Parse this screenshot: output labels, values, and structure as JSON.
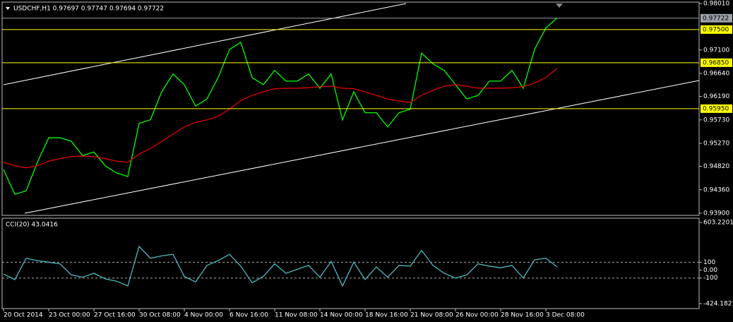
{
  "chart_data": [
    {
      "type": "line",
      "title": "USDCHF,H1  0.97697 0.97747 0.97694 0.97722",
      "ylim": [
        0.939,
        0.9801
      ],
      "yticks": [
        {
          "value": 0.9801,
          "label": "0.98010"
        },
        {
          "value": 0.971,
          "label": "0.97100"
        },
        {
          "value": 0.9664,
          "label": "0.96640"
        },
        {
          "value": 0.9619,
          "label": "0.96190"
        },
        {
          "value": 0.9573,
          "label": "0.95730"
        },
        {
          "value": 0.9527,
          "label": "0.95270"
        },
        {
          "value": 0.9482,
          "label": "0.94820"
        },
        {
          "value": 0.9436,
          "label": "0.94360"
        },
        {
          "value": 0.939,
          "label": "0.93900"
        }
      ],
      "hlines": [
        {
          "value": 0.97722,
          "label": "0.97722",
          "color": "#9aa0a6"
        },
        {
          "value": 0.975,
          "label": "0.97500",
          "color": "#ffff00"
        },
        {
          "value": 0.9685,
          "label": "0.96850",
          "color": "#ffff00"
        },
        {
          "value": 0.9595,
          "label": "0.95950",
          "color": "#ffff00"
        }
      ],
      "series": [
        {
          "color": "#00ff00",
          "values": [
            0.9476,
            0.9427,
            0.9434,
            0.949,
            0.9538,
            0.9538,
            0.9531,
            0.9503,
            0.951,
            0.9483,
            0.9469,
            0.9462,
            0.9566,
            0.9573,
            0.9628,
            0.9663,
            0.9642,
            0.96,
            0.9614,
            0.9656,
            0.9711,
            0.9725,
            0.9656,
            0.9642,
            0.967,
            0.9649,
            0.9649,
            0.9663,
            0.9635,
            0.9663,
            0.9573,
            0.9628,
            0.9587,
            0.9587,
            0.9559,
            0.9587,
            0.9594,
            0.9704,
            0.9683,
            0.967,
            0.9642,
            0.9614,
            0.9621,
            0.9649,
            0.9649,
            0.967,
            0.9635,
            0.9711,
            0.9753,
            0.9773,
            null,
            null,
            null,
            null,
            null,
            null,
            null,
            null,
            null,
            null,
            null,
            null
          ]
        },
        {
          "color": "#e00000",
          "values": [
            0.949,
            0.9483,
            0.9479,
            0.9483,
            0.9492,
            0.9497,
            0.9501,
            0.9502,
            0.9501,
            0.9497,
            0.9492,
            0.949,
            0.9506,
            0.9517,
            0.9531,
            0.9545,
            0.9559,
            0.9568,
            0.9573,
            0.958,
            0.9594,
            0.9611,
            0.9621,
            0.9628,
            0.9634,
            0.9635,
            0.9635,
            0.9636,
            0.9638,
            0.9639,
            0.9635,
            0.9634,
            0.9628,
            0.9621,
            0.9614,
            0.961,
            0.9607,
            0.9621,
            0.9631,
            0.9639,
            0.9642,
            0.9639,
            0.9635,
            0.9635,
            0.9635,
            0.9636,
            0.9638,
            0.9645,
            0.9656,
            0.9674,
            null,
            null,
            null,
            null,
            null,
            null,
            null,
            null,
            null,
            null,
            null,
            null
          ]
        }
      ]
    },
    {
      "type": "line",
      "title": "CCI(20) 43.0416",
      "ylim": [
        -424.1821,
        603.2201
      ],
      "yticks": [
        603.2201,
        100,
        {
          "value": 0,
          "label": "0.00"
        },
        -100,
        -424.1821
      ],
      "dashed": [
        100,
        -100
      ],
      "categories": [
        "20 Oct 2014",
        null,
        null,
        null,
        "23 Oct 00:00",
        null,
        null,
        null,
        "27 Oct 16:00",
        null,
        null,
        null,
        "30 Oct 08:00",
        null,
        null,
        null,
        "4 Nov 00:00",
        null,
        null,
        null,
        "6 Nov 16:00",
        null,
        null,
        null,
        "11 Nov 08:00",
        null,
        null,
        null,
        "14 Nov 00:00",
        null,
        null,
        null,
        "18 Nov 16:00",
        null,
        null,
        null,
        "21 Nov 08:00",
        null,
        null,
        null,
        "26 Nov 00:00",
        null,
        null,
        null,
        "28 Nov 16:00",
        null,
        null,
        null,
        "3 Dec 08:00",
        null,
        null,
        null,
        null,
        null,
        null,
        null,
        null,
        null,
        null,
        null,
        null,
        null
      ],
      "series": [
        {
          "color": "#4fb8c0",
          "values": [
            -50,
            -120,
            150,
            120,
            100,
            80,
            -60,
            -90,
            -40,
            -110,
            -140,
            -200,
            300,
            150,
            180,
            200,
            -80,
            -150,
            60,
            120,
            200,
            50,
            -160,
            -80,
            80,
            -40,
            10,
            60,
            -90,
            110,
            -200,
            100,
            -120,
            40,
            -90,
            60,
            50,
            250,
            60,
            -40,
            -100,
            -60,
            80,
            50,
            30,
            60,
            -100,
            130,
            150,
            40,
            null,
            null,
            null,
            null,
            null,
            null,
            null,
            null,
            null,
            null,
            null,
            null
          ]
        }
      ]
    }
  ]
}
